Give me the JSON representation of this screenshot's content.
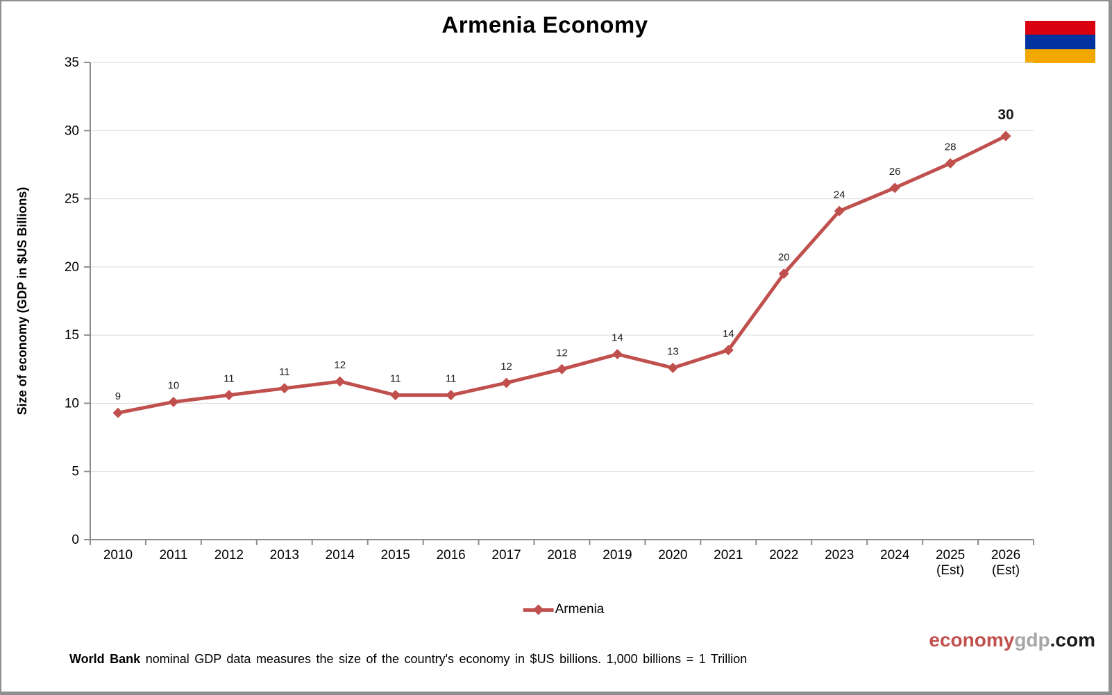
{
  "chart_data": {
    "type": "line",
    "title": "Armenia Economy",
    "series_name": "Armenia",
    "xlabel": "",
    "ylabel": "Size of economy (GDP in $US Billions)",
    "categories": [
      "2010",
      "2011",
      "2012",
      "2013",
      "2014",
      "2015",
      "2016",
      "2017",
      "2018",
      "2019",
      "2020",
      "2021",
      "2022",
      "2023",
      "2024",
      "2025 (Est)",
      "2026 (Est)"
    ],
    "values": [
      9.3,
      10.1,
      10.6,
      11.1,
      11.6,
      10.6,
      10.6,
      11.5,
      12.5,
      13.6,
      12.6,
      13.9,
      19.5,
      24.1,
      25.8,
      27.6,
      29.6
    ],
    "point_labels": [
      "9",
      "10",
      "11",
      "11",
      "12",
      "11",
      "11",
      "12",
      "12",
      "14",
      "13",
      "14",
      "20",
      "24",
      "26",
      "28",
      "30"
    ],
    "ylim": [
      0,
      35
    ],
    "ytick_step": 5,
    "yticks": [
      "0",
      "5",
      "10",
      "15",
      "20",
      "25",
      "30",
      "35"
    ],
    "grid": true,
    "legend_position": "bottom",
    "final_label_emphasized": true,
    "line_color": "#C0504D",
    "grid_color": "#D9D9D9",
    "axis_color": "#8C8C8C",
    "tick_label_color": "#000000",
    "data_label_color": "#1a1a1a"
  },
  "flag": {
    "name": "Armenia flag",
    "colors": [
      "#D90012",
      "#0033A0",
      "#F2A800"
    ]
  },
  "legend": {
    "label": "Armenia"
  },
  "brand": {
    "part1": "economy",
    "part2": "gdp",
    "part3": ".com",
    "colors": [
      "#C0504D",
      "#A6A6A6",
      "#1A1A1A"
    ]
  },
  "note": {
    "bold": "World Bank",
    "rest": " nominal GDP data measures the size of the country's economy in $US billions. 1,000 billions = 1 Trillion"
  }
}
